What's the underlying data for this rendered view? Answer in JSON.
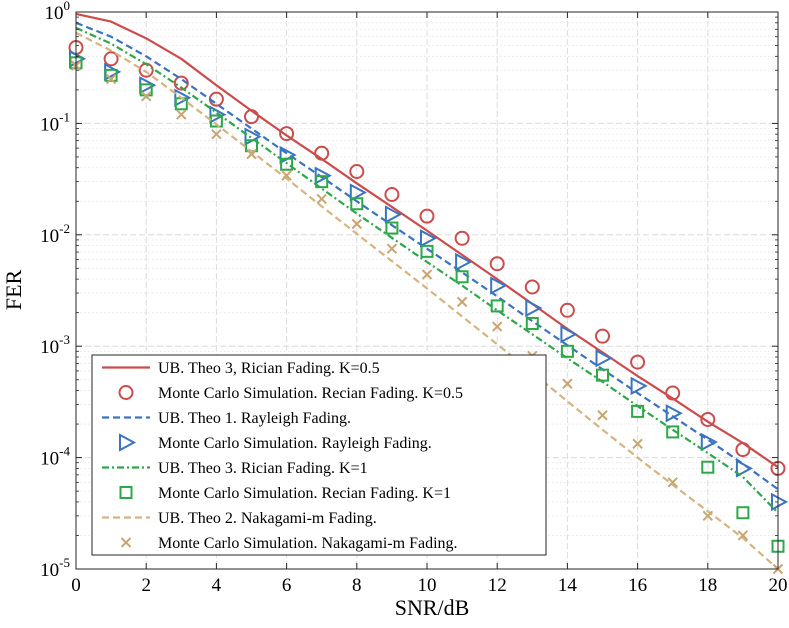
{
  "chart_data": {
    "type": "line",
    "title": "",
    "xlabel": "SNR/dB",
    "ylabel": "FER",
    "xlim": [
      0,
      20
    ],
    "ylim_log10": [
      -5,
      0
    ],
    "yscale": "log",
    "grid": true,
    "legend_position": "bottom-left",
    "x_ticks": [
      "0",
      "2",
      "4",
      "6",
      "8",
      "10",
      "12",
      "14",
      "16",
      "18",
      "20"
    ],
    "y_ticks": [
      {
        "base": "10",
        "exp": "0"
      },
      {
        "base": "10",
        "exp": "-1"
      },
      {
        "base": "10",
        "exp": "-2"
      },
      {
        "base": "10",
        "exp": "-3"
      },
      {
        "base": "10",
        "exp": "-4"
      },
      {
        "base": "10",
        "exp": "-5"
      }
    ],
    "series": [
      {
        "name": "UB. Theo 3, Rician Fading. K=0.5",
        "style": "solid-line",
        "color": "#cc4c4c",
        "x": [
          0,
          1,
          2,
          3,
          4,
          5,
          6,
          7,
          8,
          9,
          10,
          11,
          12,
          13,
          14,
          15,
          16,
          17,
          18,
          19,
          20
        ],
        "y": [
          0.96,
          0.82,
          0.58,
          0.38,
          0.22,
          0.13,
          0.078,
          0.048,
          0.029,
          0.0178,
          0.0109,
          0.0066,
          0.004,
          0.0024,
          0.00143,
          0.00088,
          0.00054,
          0.00034,
          0.00021,
          0.000135,
          8.2e-05
        ]
      },
      {
        "name": "Monte Carlo Simulation. Recian Fading. K=0.5",
        "style": "circle",
        "color": "#cc4c4c",
        "x": [
          0,
          1,
          2,
          3,
          4,
          5,
          6,
          7,
          8,
          9,
          10,
          11,
          12,
          13,
          14,
          15,
          16,
          17,
          18,
          19,
          20
        ],
        "y": [
          0.48,
          0.38,
          0.3,
          0.23,
          0.165,
          0.115,
          0.081,
          0.054,
          0.037,
          0.023,
          0.0147,
          0.0093,
          0.0055,
          0.0034,
          0.0021,
          0.00123,
          0.00072,
          0.00038,
          0.00022,
          0.000118,
          8e-05
        ]
      },
      {
        "name": "UB. Theo 1. Rayleigh Fading.",
        "style": "dashed-line",
        "color": "#3a74c0",
        "x": [
          0,
          1,
          2,
          3,
          4,
          5,
          6,
          7,
          8,
          9,
          10,
          11,
          12,
          13,
          14,
          15,
          16,
          17,
          18,
          19,
          20
        ],
        "y": [
          0.8,
          0.6,
          0.4,
          0.25,
          0.15,
          0.09,
          0.054,
          0.033,
          0.02,
          0.0122,
          0.0075,
          0.0046,
          0.0028,
          0.00168,
          0.00102,
          0.00062,
          0.00038,
          0.000235,
          0.000145,
          8.8e-05,
          5.2e-05
        ]
      },
      {
        "name": "Monte Carlo Simulation. Rayleigh Fading.",
        "style": "triangle-right",
        "color": "#3a74c0",
        "x": [
          0,
          1,
          2,
          3,
          4,
          5,
          6,
          7,
          8,
          9,
          10,
          11,
          12,
          13,
          14,
          15,
          16,
          17,
          18,
          19,
          20
        ],
        "y": [
          0.38,
          0.29,
          0.22,
          0.17,
          0.12,
          0.076,
          0.052,
          0.034,
          0.024,
          0.0152,
          0.0093,
          0.0057,
          0.0035,
          0.0022,
          0.00128,
          0.00078,
          0.00044,
          0.00025,
          0.000138,
          8e-05,
          4e-05
        ]
      },
      {
        "name": "UB. Theo 3. Rician Fading. K=1",
        "style": "dashdot-line",
        "color": "#2ca84a",
        "x": [
          0,
          1,
          2,
          3,
          4,
          5,
          6,
          7,
          8,
          9,
          10,
          11,
          12,
          13,
          14,
          15,
          16,
          17,
          18,
          19,
          20
        ],
        "y": [
          0.72,
          0.52,
          0.34,
          0.21,
          0.125,
          0.074,
          0.044,
          0.026,
          0.0155,
          0.0094,
          0.0057,
          0.0035,
          0.0021,
          0.00128,
          0.00078,
          0.00048,
          0.00029,
          0.000178,
          0.00011,
          6.7e-05,
          3.2e-05
        ]
      },
      {
        "name": "Monte Carlo Simulation. Recian Fading. K=1",
        "style": "square",
        "color": "#2ca84a",
        "x": [
          0,
          1,
          2,
          3,
          4,
          5,
          6,
          7,
          8,
          9,
          10,
          11,
          12,
          13,
          14,
          15,
          16,
          17,
          18,
          19,
          20
        ],
        "y": [
          0.35,
          0.27,
          0.2,
          0.15,
          0.105,
          0.063,
          0.043,
          0.03,
          0.019,
          0.0115,
          0.0071,
          0.0042,
          0.0023,
          0.0016,
          0.0009,
          0.00055,
          0.00026,
          0.00017,
          8.2e-05,
          3.2e-05,
          1.6e-05
        ]
      },
      {
        "name": "UB. Theo 2. Nakagami-m Fading.",
        "style": "dashed-line",
        "color": "#d4b483",
        "x": [
          0,
          1,
          2,
          3,
          4,
          5,
          6,
          7,
          8,
          9,
          10,
          11,
          12,
          13,
          14,
          15,
          16,
          17,
          18,
          19,
          20
        ],
        "y": [
          0.65,
          0.45,
          0.29,
          0.17,
          0.098,
          0.056,
          0.032,
          0.018,
          0.0102,
          0.0058,
          0.0033,
          0.00185,
          0.00104,
          0.00058,
          0.00032,
          0.000178,
          0.0001,
          5.7e-05,
          3.3e-05,
          1.9e-05,
          1e-05
        ]
      },
      {
        "name": "Monte Carlo Simulation. Nakagami-m Fading.",
        "style": "x-mark",
        "color": "#c9a571",
        "x": [
          0,
          1,
          2,
          3,
          4,
          5,
          6,
          7,
          8,
          9,
          10,
          11,
          12,
          13,
          14,
          15,
          16,
          17,
          18,
          19,
          20
        ],
        "y": [
          0.33,
          0.25,
          0.175,
          0.12,
          0.08,
          0.053,
          0.034,
          0.021,
          0.0125,
          0.0075,
          0.0044,
          0.0025,
          0.0015,
          0.00082,
          0.00046,
          0.00024,
          0.000133,
          6e-05,
          3e-05,
          2e-05,
          1e-05
        ]
      }
    ]
  },
  "legend": [
    "UB. Theo 3, Rician Fading. K=0.5",
    "Monte Carlo Simulation. Recian Fading. K=0.5",
    "UB. Theo 1. Rayleigh Fading.",
    "Monte Carlo Simulation. Rayleigh Fading.",
    "UB. Theo 3. Rician Fading. K=1",
    "Monte Carlo Simulation. Recian Fading. K=1",
    "UB. Theo 2. Nakagami-m Fading.",
    "Monte Carlo Simulation. Nakagami-m Fading."
  ]
}
